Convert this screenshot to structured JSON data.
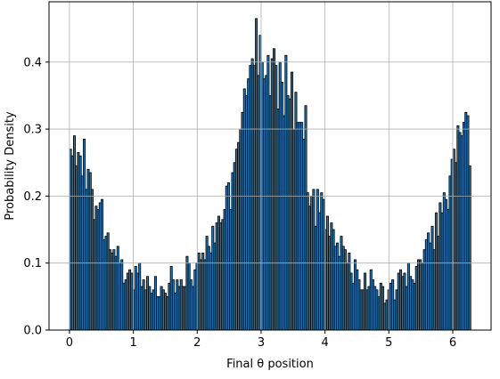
{
  "chart_data": {
    "type": "bar",
    "title": "",
    "xlabel": "Final θ position",
    "ylabel": "Probability Density",
    "xlim": [
      -0.32,
      6.6
    ],
    "ylim": [
      0,
      0.49
    ],
    "grid": true,
    "bar_color": "#1f77b4",
    "edge_color": "#000000",
    "xticks": [
      0,
      1,
      2,
      3,
      4,
      5,
      6
    ],
    "yticks": [
      0.0,
      0.1,
      0.2,
      0.3,
      0.4
    ],
    "ytick_labels": [
      "0.0",
      "0.1",
      "0.2",
      "0.3",
      "0.4"
    ],
    "bin_range": [
      0,
      6.283
    ],
    "values": [
      0.27,
      0.26,
      0.29,
      0.245,
      0.265,
      0.26,
      0.23,
      0.285,
      0.21,
      0.24,
      0.235,
      0.21,
      0.165,
      0.185,
      0.18,
      0.19,
      0.195,
      0.135,
      0.14,
      0.145,
      0.12,
      0.115,
      0.12,
      0.11,
      0.125,
      0.1,
      0.105,
      0.07,
      0.075,
      0.085,
      0.09,
      0.085,
      0.06,
      0.095,
      0.085,
      0.1,
      0.065,
      0.075,
      0.06,
      0.08,
      0.065,
      0.055,
      0.06,
      0.08,
      0.05,
      0.05,
      0.065,
      0.06,
      0.055,
      0.05,
      0.07,
      0.095,
      0.075,
      0.055,
      0.075,
      0.065,
      0.075,
      0.065,
      0.065,
      0.11,
      0.1,
      0.075,
      0.065,
      0.09,
      0.1,
      0.115,
      0.105,
      0.115,
      0.105,
      0.14,
      0.125,
      0.115,
      0.155,
      0.13,
      0.16,
      0.17,
      0.16,
      0.165,
      0.18,
      0.215,
      0.22,
      0.18,
      0.235,
      0.25,
      0.27,
      0.28,
      0.3,
      0.325,
      0.36,
      0.35,
      0.375,
      0.395,
      0.405,
      0.395,
      0.465,
      0.38,
      0.44,
      0.4,
      0.375,
      0.38,
      0.41,
      0.35,
      0.405,
      0.42,
      0.395,
      0.33,
      0.4,
      0.37,
      0.32,
      0.41,
      0.35,
      0.345,
      0.385,
      0.3,
      0.355,
      0.31,
      0.31,
      0.31,
      0.285,
      0.335,
      0.205,
      0.185,
      0.2,
      0.21,
      0.155,
      0.21,
      0.175,
      0.205,
      0.195,
      0.15,
      0.17,
      0.14,
      0.16,
      0.15,
      0.125,
      0.13,
      0.11,
      0.14,
      0.125,
      0.12,
      0.1,
      0.115,
      0.085,
      0.07,
      0.105,
      0.09,
      0.075,
      0.06,
      0.06,
      0.085,
      0.06,
      0.065,
      0.09,
      0.075,
      0.065,
      0.06,
      0.05,
      0.07,
      0.065,
      0.04,
      0.045,
      0.06,
      0.07,
      0.075,
      0.045,
      0.06,
      0.085,
      0.09,
      0.08,
      0.085,
      0.065,
      0.1,
      0.08,
      0.075,
      0.07,
      0.095,
      0.105,
      0.105,
      0.1,
      0.12,
      0.135,
      0.145,
      0.13,
      0.155,
      0.12,
      0.175,
      0.14,
      0.19,
      0.175,
      0.205,
      0.195,
      0.18,
      0.23,
      0.255,
      0.27,
      0.25,
      0.305,
      0.295,
      0.29,
      0.31,
      0.325,
      0.32,
      0.245
    ]
  }
}
